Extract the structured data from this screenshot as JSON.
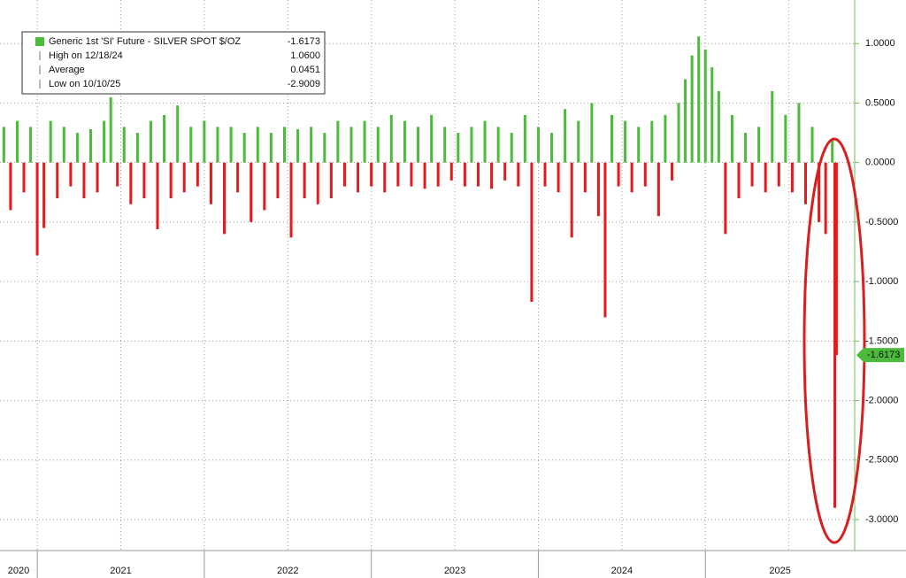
{
  "chart_data": {
    "type": "bar",
    "legend": {
      "items": [
        {
          "label": "Generic 1st 'SI' Future - SILVER SPOT $/OZ",
          "value": -1.6173
        },
        {
          "label": "High on 12/18/24",
          "value": {
            "value": 1.06,
            "label": "1.0600"
          }
        },
        {
          "label": "Average",
          "value": 0.0451
        },
        {
          "label": "Low on 10/10/25",
          "value": -2.9009
        }
      ]
    },
    "x": [
      2020.8,
      2020.84,
      2020.88,
      2020.92,
      2020.96,
      2021.0,
      2021.04,
      2021.08,
      2021.12,
      2021.16,
      2021.2,
      2021.24,
      2021.28,
      2021.32,
      2021.36,
      2021.4,
      2021.44,
      2021.48,
      2021.52,
      2021.56,
      2021.6,
      2021.64,
      2021.68,
      2021.72,
      2021.76,
      2021.8,
      2021.84,
      2021.88,
      2021.92,
      2021.96,
      2022.0,
      2022.04,
      2022.08,
      2022.12,
      2022.16,
      2022.2,
      2022.24,
      2022.28,
      2022.32,
      2022.36,
      2022.4,
      2022.44,
      2022.48,
      2022.52,
      2022.56,
      2022.6,
      2022.64,
      2022.68,
      2022.72,
      2022.76,
      2022.8,
      2022.84,
      2022.88,
      2022.92,
      2022.96,
      2023.0,
      2023.04,
      2023.08,
      2023.12,
      2023.16,
      2023.2,
      2023.24,
      2023.28,
      2023.32,
      2023.36,
      2023.4,
      2023.44,
      2023.48,
      2023.52,
      2023.56,
      2023.6,
      2023.64,
      2023.68,
      2023.72,
      2023.76,
      2023.8,
      2023.84,
      2023.88,
      2023.92,
      2023.96,
      2024.0,
      2024.04,
      2024.08,
      2024.12,
      2024.16,
      2024.2,
      2024.24,
      2024.28,
      2024.32,
      2024.36,
      2024.4,
      2024.44,
      2024.48,
      2024.52,
      2024.56,
      2024.6,
      2024.64,
      2024.68,
      2024.72,
      2024.76,
      2024.8,
      2024.84,
      2024.88,
      2024.92,
      2024.96,
      2025.0,
      2025.04,
      2025.08,
      2025.12,
      2025.16,
      2025.2,
      2025.24,
      2025.28,
      2025.32,
      2025.36,
      2025.4,
      2025.44,
      2025.48,
      2025.52,
      2025.56,
      2025.6,
      2025.64,
      2025.68,
      2025.72,
      2025.76,
      2025.775,
      2025.785
    ],
    "series": [
      {
        "name": "Generic 1st 'SI' Future - SILVER SPOT $/OZ",
        "color": "#4cbb3c",
        "negative_color": "#e41a1c",
        "values": [
          0.3,
          -0.4,
          0.35,
          -0.25,
          0.3,
          -0.78,
          -0.55,
          0.35,
          -0.3,
          0.3,
          -0.2,
          0.25,
          -0.3,
          0.28,
          -0.25,
          0.35,
          0.55,
          -0.2,
          0.3,
          -0.35,
          0.25,
          -0.3,
          0.35,
          -0.56,
          0.4,
          -0.3,
          0.48,
          -0.25,
          0.3,
          -0.2,
          0.35,
          -0.35,
          0.3,
          -0.6,
          0.3,
          -0.25,
          0.25,
          -0.5,
          0.3,
          -0.4,
          0.25,
          -0.3,
          0.3,
          -0.63,
          0.28,
          -0.3,
          0.3,
          -0.35,
          0.25,
          -0.3,
          0.35,
          -0.2,
          0.3,
          -0.25,
          0.35,
          -0.2,
          0.3,
          -0.25,
          0.4,
          -0.2,
          0.35,
          -0.2,
          0.3,
          -0.22,
          0.4,
          -0.2,
          0.3,
          -0.15,
          0.25,
          -0.2,
          0.3,
          -0.2,
          0.35,
          -0.22,
          0.3,
          -0.15,
          0.25,
          -0.2,
          0.4,
          -1.17,
          0.3,
          -0.2,
          0.25,
          -0.25,
          0.45,
          -0.63,
          0.35,
          -0.25,
          0.5,
          -0.45,
          -1.3,
          0.4,
          -0.2,
          0.35,
          -0.25,
          0.3,
          -0.2,
          0.35,
          -0.45,
          0.4,
          -0.15,
          0.5,
          0.7,
          0.9,
          1.06,
          0.95,
          0.8,
          0.6,
          -0.6,
          0.4,
          -0.3,
          0.25,
          -0.2,
          0.3,
          -0.25,
          0.6,
          -0.2,
          0.4,
          -0.25,
          0.5,
          -0.35,
          0.3,
          -0.5,
          -0.6,
          0.2,
          -2.9009,
          -1.6173
        ]
      }
    ],
    "xlim": [
      2020.777,
      2025.894
    ],
    "xticks": [
      {
        "value": 2020,
        "label": "2020"
      },
      {
        "value": 2021,
        "label": "2021"
      },
      {
        "value": 2022,
        "label": "2022"
      },
      {
        "value": 2023,
        "label": "2023"
      },
      {
        "value": 2024,
        "label": "2024"
      },
      {
        "value": 2025,
        "label": "2025"
      }
    ],
    "ylim": [
      -3.26,
      1.366
    ],
    "yticks": [
      {
        "value": -3,
        "label": "-3.0000"
      },
      {
        "value": -2.5,
        "label": "-2.5000"
      },
      {
        "value": -2,
        "label": "-2.0000"
      },
      {
        "value": -1.5,
        "label": "-1.5000"
      },
      {
        "value": -1,
        "label": "-1.0000"
      },
      {
        "value": -0.5,
        "label": "-0.5000"
      },
      {
        "value": 0,
        "label": "0.0000"
      },
      {
        "value": 0.5,
        "label": "0.5000"
      },
      {
        "value": 1,
        "label": "1.0000"
      }
    ],
    "grid": true
  }
}
